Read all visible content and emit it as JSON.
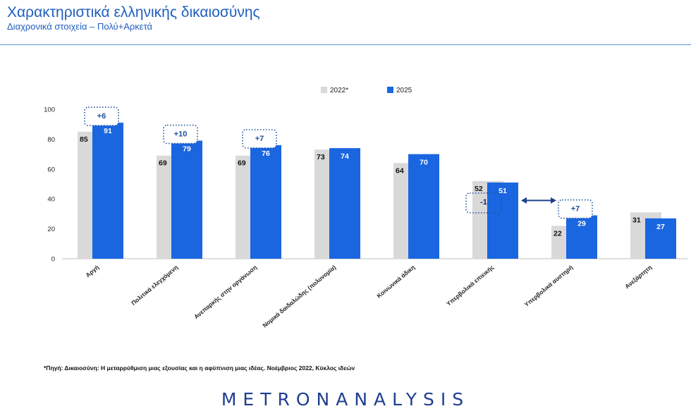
{
  "header": {
    "title": "Χαρακτηριστικά ελληνικής δικαιοσύνης",
    "subtitle": "Διαχρονικά στοιχεία – Πολύ+Αρκετά"
  },
  "colors": {
    "series_2022": "#d9d9d9",
    "series_2025": "#1a66e0",
    "accent": "#1f5fbf",
    "change_box": "#1f4f9f"
  },
  "chart_data": {
    "type": "bar",
    "categories": [
      "Αργή",
      "Πολιτικά ελεγχόμενη",
      "Ανεπαρκής στην οργάνωση",
      "Νομικά δαιδαλώδης (πολυνομία)",
      "Κοινωνικά άδικη",
      "Υπερβολικά επιεικής",
      "Υπερβολικά αυστηρή",
      "Ανεξάρτητη"
    ],
    "series": [
      {
        "name": "2022*",
        "values": [
          85,
          69,
          69,
          73,
          64,
          52,
          22,
          31
        ]
      },
      {
        "name": "2025",
        "values": [
          91,
          79,
          76,
          74,
          70,
          51,
          29,
          27
        ]
      }
    ],
    "data_labels_2022": [
      "85",
      "69",
      "69",
      "73",
      "64",
      "52",
      "22",
      "31"
    ],
    "data_labels_2025": [
      "91",
      "79",
      "76",
      "74",
      "70",
      "51",
      "29",
      "27"
    ],
    "y_ticks": [
      "0",
      "20",
      "40",
      "60",
      "80",
      "100"
    ],
    "ylim": [
      0,
      100
    ],
    "legend_position": "top",
    "grid": false,
    "annotations": [
      {
        "category": "Αργή",
        "text": "+6"
      },
      {
        "category": "Πολιτικά ελεγχόμενη",
        "text": "+10"
      },
      {
        "category": "Ανεπαρκής στην οργάνωση",
        "text": "+7"
      },
      {
        "category": "Υπερβολικά επιεικής",
        "text": "-1"
      },
      {
        "category": "Υπερβολικά αυστηρή",
        "text": "+7"
      }
    ]
  },
  "footer": {
    "source": "*Πηγή: Δικαιοσύνη: Η μεταρρύθμιση μιας εξουσίας και η αφύπνιση μιας ιδέας. Νοέμβριος 2022, Κύκλος ιδεών",
    "logo": "METRONANALYSIS"
  }
}
